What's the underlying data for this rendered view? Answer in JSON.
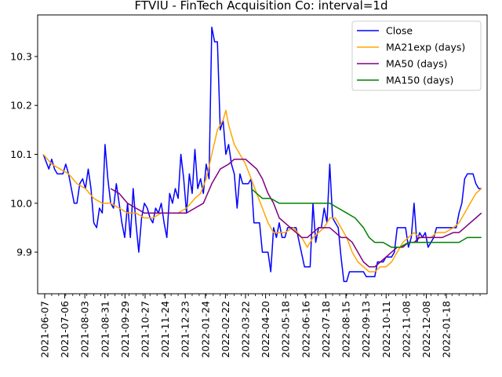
{
  "chart_data": {
    "type": "line",
    "title": "FTVIU - FinTech Acquisition Co: interval=1d",
    "xlabel": "",
    "ylabel": "",
    "ylim": [
      9.815,
      10.385
    ],
    "xlim": [
      "2021-06-02",
      "2022-01-25"
    ],
    "yticks": [
      9.9,
      10.0,
      10.1,
      10.2,
      10.3
    ],
    "ytick_labels": [
      "9.9",
      "10.0",
      "10.1",
      "10.2",
      "10.3"
    ],
    "xtick_labels": [
      "2021-06-07",
      "2021-07-06",
      "2021-08-03",
      "2021-08-31",
      "2021-09-29",
      "2021-10-27",
      "2021-11-24",
      "2021-12-23",
      "2022-01-24",
      "2022-02-22",
      "2022-03-22",
      "2022-04-20",
      "2022-05-18",
      "2022-06-16",
      "2022-07-18",
      "2022-08-15",
      "2022-09-13",
      "2022-10-11",
      "2022-11-08",
      "2022-12-08",
      "2022-01-18"
    ],
    "grid": false,
    "legend_position": "top-right",
    "series": [
      {
        "name": "Close",
        "color": "#0000ff",
        "points": [
          [
            4,
            10.1
          ],
          [
            8,
            10.07
          ],
          [
            10,
            10.09
          ],
          [
            12,
            10.07
          ],
          [
            14,
            10.06
          ],
          [
            18,
            10.06
          ],
          [
            20,
            10.08
          ],
          [
            22,
            10.06
          ],
          [
            24,
            10.03
          ],
          [
            26,
            10.0
          ],
          [
            28,
            10.0
          ],
          [
            30,
            10.04
          ],
          [
            32,
            10.05
          ],
          [
            34,
            10.03
          ],
          [
            36,
            10.07
          ],
          [
            38,
            10.03
          ],
          [
            40,
            9.96
          ],
          [
            42,
            9.95
          ],
          [
            44,
            9.99
          ],
          [
            46,
            9.98
          ],
          [
            48,
            10.12
          ],
          [
            50,
            10.05
          ],
          [
            52,
            10.0
          ],
          [
            54,
            9.99
          ],
          [
            56,
            10.04
          ],
          [
            58,
            10.0
          ],
          [
            60,
            9.96
          ],
          [
            62,
            9.93
          ],
          [
            64,
            10.0
          ],
          [
            66,
            9.93
          ],
          [
            68,
            10.03
          ],
          [
            70,
            9.96
          ],
          [
            72,
            9.9
          ],
          [
            74,
            9.97
          ],
          [
            76,
            10.0
          ],
          [
            78,
            9.99
          ],
          [
            80,
            9.97
          ],
          [
            82,
            9.96
          ],
          [
            84,
            9.99
          ],
          [
            86,
            9.98
          ],
          [
            88,
            10.0
          ],
          [
            90,
            9.96
          ],
          [
            92,
            9.93
          ],
          [
            94,
            10.02
          ],
          [
            96,
            10.0
          ],
          [
            98,
            10.03
          ],
          [
            100,
            10.01
          ],
          [
            102,
            10.1
          ],
          [
            104,
            10.05
          ],
          [
            106,
            9.98
          ],
          [
            108,
            10.06
          ],
          [
            110,
            10.02
          ],
          [
            112,
            10.11
          ],
          [
            114,
            10.03
          ],
          [
            116,
            10.05
          ],
          [
            118,
            10.02
          ],
          [
            120,
            10.08
          ],
          [
            122,
            10.05
          ],
          [
            124,
            10.36
          ],
          [
            126,
            10.33
          ],
          [
            128,
            10.33
          ],
          [
            130,
            10.15
          ],
          [
            132,
            10.17
          ],
          [
            134,
            10.1
          ],
          [
            136,
            10.12
          ],
          [
            138,
            10.08
          ],
          [
            140,
            10.06
          ],
          [
            142,
            9.99
          ],
          [
            144,
            10.06
          ],
          [
            146,
            10.04
          ],
          [
            150,
            10.04
          ],
          [
            152,
            10.05
          ],
          [
            154,
            9.96
          ],
          [
            158,
            9.96
          ],
          [
            160,
            9.9
          ],
          [
            162,
            9.9
          ],
          [
            164,
            9.9
          ],
          [
            166,
            9.86
          ],
          [
            168,
            9.95
          ],
          [
            170,
            9.93
          ],
          [
            172,
            9.96
          ],
          [
            174,
            9.93
          ],
          [
            176,
            9.93
          ],
          [
            178,
            9.95
          ],
          [
            184,
            9.95
          ],
          [
            190,
            9.87
          ],
          [
            194,
            9.87
          ],
          [
            196,
            10.0
          ],
          [
            198,
            9.92
          ],
          [
            200,
            9.95
          ],
          [
            202,
            9.95
          ],
          [
            204,
            9.99
          ],
          [
            206,
            9.96
          ],
          [
            208,
            10.08
          ],
          [
            210,
            9.97
          ],
          [
            212,
            9.96
          ],
          [
            214,
            9.95
          ],
          [
            216,
            9.89
          ],
          [
            218,
            9.84
          ],
          [
            220,
            9.84
          ],
          [
            222,
            9.86
          ],
          [
            232,
            9.86
          ],
          [
            234,
            9.85
          ],
          [
            240,
            9.85
          ],
          [
            242,
            9.88
          ],
          [
            246,
            9.88
          ],
          [
            248,
            9.89
          ],
          [
            252,
            9.89
          ],
          [
            254,
            9.9
          ],
          [
            256,
            9.95
          ],
          [
            262,
            9.95
          ],
          [
            264,
            9.91
          ],
          [
            266,
            9.93
          ],
          [
            268,
            10.0
          ],
          [
            270,
            9.92
          ],
          [
            272,
            9.94
          ],
          [
            274,
            9.93
          ],
          [
            276,
            9.94
          ],
          [
            278,
            9.91
          ],
          [
            280,
            9.92
          ],
          [
            282,
            9.93
          ],
          [
            284,
            9.95
          ],
          [
            298,
            9.95
          ],
          [
            300,
            9.98
          ],
          [
            302,
            10.0
          ],
          [
            304,
            10.05
          ],
          [
            306,
            10.06
          ],
          [
            310,
            10.06
          ],
          [
            312,
            10.04
          ],
          [
            314,
            10.03
          ],
          [
            316,
            10.03
          ]
        ]
      },
      {
        "name": "MA21exp (days)",
        "color": "#ffa500",
        "points": [
          [
            4,
            10.1
          ],
          [
            10,
            10.08
          ],
          [
            16,
            10.07
          ],
          [
            22,
            10.06
          ],
          [
            28,
            10.04
          ],
          [
            34,
            10.03
          ],
          [
            40,
            10.01
          ],
          [
            46,
            10.0
          ],
          [
            52,
            10.0
          ],
          [
            58,
            9.99
          ],
          [
            64,
            9.98
          ],
          [
            70,
            9.98
          ],
          [
            76,
            9.97
          ],
          [
            82,
            9.97
          ],
          [
            88,
            9.98
          ],
          [
            94,
            9.98
          ],
          [
            100,
            9.98
          ],
          [
            106,
            9.99
          ],
          [
            112,
            10.01
          ],
          [
            116,
            10.02
          ],
          [
            120,
            10.05
          ],
          [
            124,
            10.1
          ],
          [
            128,
            10.15
          ],
          [
            132,
            10.17
          ],
          [
            134,
            10.19
          ],
          [
            136,
            10.16
          ],
          [
            140,
            10.12
          ],
          [
            144,
            10.1
          ],
          [
            148,
            10.08
          ],
          [
            152,
            10.05
          ],
          [
            156,
            10.02
          ],
          [
            160,
            9.99
          ],
          [
            164,
            9.96
          ],
          [
            168,
            9.94
          ],
          [
            172,
            9.94
          ],
          [
            176,
            9.94
          ],
          [
            182,
            9.95
          ],
          [
            188,
            9.93
          ],
          [
            192,
            9.91
          ],
          [
            196,
            9.93
          ],
          [
            200,
            9.94
          ],
          [
            204,
            9.95
          ],
          [
            208,
            9.97
          ],
          [
            212,
            9.97
          ],
          [
            216,
            9.95
          ],
          [
            220,
            9.93
          ],
          [
            224,
            9.9
          ],
          [
            228,
            9.88
          ],
          [
            232,
            9.87
          ],
          [
            236,
            9.86
          ],
          [
            240,
            9.86
          ],
          [
            244,
            9.87
          ],
          [
            248,
            9.87
          ],
          [
            252,
            9.88
          ],
          [
            256,
            9.9
          ],
          [
            260,
            9.92
          ],
          [
            264,
            9.93
          ],
          [
            268,
            9.94
          ],
          [
            272,
            9.93
          ],
          [
            276,
            9.93
          ],
          [
            280,
            9.93
          ],
          [
            284,
            9.94
          ],
          [
            290,
            9.94
          ],
          [
            296,
            9.95
          ],
          [
            300,
            9.96
          ],
          [
            304,
            9.98
          ],
          [
            308,
            10.0
          ],
          [
            312,
            10.02
          ],
          [
            316,
            10.03
          ]
        ]
      },
      {
        "name": "MA50 (days)",
        "color": "#800080",
        "points": [
          [
            52,
            10.03
          ],
          [
            58,
            10.02
          ],
          [
            64,
            10.0
          ],
          [
            70,
            9.99
          ],
          [
            76,
            9.98
          ],
          [
            82,
            9.98
          ],
          [
            88,
            9.98
          ],
          [
            94,
            9.98
          ],
          [
            100,
            9.98
          ],
          [
            106,
            9.98
          ],
          [
            112,
            9.99
          ],
          [
            118,
            10.0
          ],
          [
            124,
            10.04
          ],
          [
            130,
            10.07
          ],
          [
            136,
            10.08
          ],
          [
            140,
            10.09
          ],
          [
            144,
            10.09
          ],
          [
            148,
            10.09
          ],
          [
            152,
            10.08
          ],
          [
            156,
            10.07
          ],
          [
            160,
            10.05
          ],
          [
            164,
            10.02
          ],
          [
            168,
            10.0
          ],
          [
            172,
            9.97
          ],
          [
            176,
            9.96
          ],
          [
            180,
            9.95
          ],
          [
            184,
            9.94
          ],
          [
            188,
            9.93
          ],
          [
            192,
            9.93
          ],
          [
            196,
            9.94
          ],
          [
            200,
            9.95
          ],
          [
            204,
            9.95
          ],
          [
            208,
            9.95
          ],
          [
            212,
            9.94
          ],
          [
            216,
            9.93
          ],
          [
            220,
            9.93
          ],
          [
            224,
            9.92
          ],
          [
            228,
            9.9
          ],
          [
            232,
            9.88
          ],
          [
            236,
            9.87
          ],
          [
            240,
            9.87
          ],
          [
            244,
            9.88
          ],
          [
            248,
            9.89
          ],
          [
            252,
            9.9
          ],
          [
            256,
            9.91
          ],
          [
            260,
            9.91
          ],
          [
            264,
            9.92
          ],
          [
            268,
            9.92
          ],
          [
            272,
            9.93
          ],
          [
            276,
            9.93
          ],
          [
            280,
            9.93
          ],
          [
            288,
            9.93
          ],
          [
            296,
            9.94
          ],
          [
            300,
            9.94
          ],
          [
            304,
            9.95
          ],
          [
            308,
            9.96
          ],
          [
            312,
            9.97
          ],
          [
            316,
            9.98
          ]
        ]
      },
      {
        "name": "MA150 (days)",
        "color": "#008000",
        "points": [
          [
            152,
            10.03
          ],
          [
            156,
            10.02
          ],
          [
            160,
            10.01
          ],
          [
            166,
            10.01
          ],
          [
            172,
            10.0
          ],
          [
            178,
            10.0
          ],
          [
            184,
            10.0
          ],
          [
            190,
            10.0
          ],
          [
            196,
            10.0
          ],
          [
            202,
            10.0
          ],
          [
            208,
            10.0
          ],
          [
            214,
            9.99
          ],
          [
            220,
            9.98
          ],
          [
            226,
            9.97
          ],
          [
            232,
            9.95
          ],
          [
            236,
            9.93
          ],
          [
            240,
            9.92
          ],
          [
            246,
            9.92
          ],
          [
            252,
            9.91
          ],
          [
            258,
            9.91
          ],
          [
            264,
            9.92
          ],
          [
            270,
            9.92
          ],
          [
            276,
            9.92
          ],
          [
            282,
            9.92
          ],
          [
            288,
            9.92
          ],
          [
            294,
            9.92
          ],
          [
            300,
            9.92
          ],
          [
            306,
            9.93
          ],
          [
            312,
            9.93
          ],
          [
            316,
            9.93
          ]
        ]
      }
    ]
  }
}
